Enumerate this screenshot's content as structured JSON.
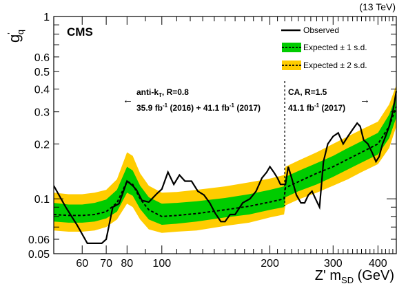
{
  "chart_data": {
    "type": "line",
    "energy_label": "(13 TeV)",
    "experiment_label": "CMS",
    "xlabel": {
      "main": "Z' m",
      "sub": "SD",
      "unit": " (GeV)"
    },
    "ylabel": {
      "main": "g",
      "sup": "'",
      "sub": "q"
    },
    "x_scale": "log",
    "y_scale": "log",
    "xlim": [
      50,
      450
    ],
    "ylim": [
      0.05,
      1.0
    ],
    "x_ticks": [
      {
        "value": 60,
        "label": "60"
      },
      {
        "value": 70,
        "label": "70"
      },
      {
        "value": 80,
        "label": "80"
      },
      {
        "value": 100,
        "label": "100"
      },
      {
        "value": 200,
        "label": "200"
      },
      {
        "value": 300,
        "label": "300"
      },
      {
        "value": 400,
        "label": "400"
      }
    ],
    "y_ticks": [
      {
        "value": 0.05,
        "label": "0.05"
      },
      {
        "value": 0.06,
        "label": "0.06"
      },
      {
        "value": 0.1,
        "label": "0.1"
      },
      {
        "value": 0.2,
        "label": "0.2"
      },
      {
        "value": 0.3,
        "label": "0.3"
      },
      {
        "value": 0.4,
        "label": "0.4"
      },
      {
        "value": 0.5,
        "label": "0.5"
      },
      {
        "value": 0.6,
        "label": "0.6"
      },
      {
        "value": 1.0,
        "label": "1"
      }
    ],
    "divider_x": 220,
    "region_left": {
      "arrow": "←",
      "algo_main": "anti-k",
      "algo_sub": "T",
      "algo_rest": ", R=0.8",
      "lumi_a": "35.9 fb",
      "lumi_a_sup": "-1",
      "lumi_a_rest": " (2016) + 41.1 fb",
      "lumi_b_sup": "-1",
      "lumi_b_rest": " (2017)"
    },
    "region_right": {
      "arrow": "→",
      "algo": "CA, R=1.5",
      "lumi": "41.1 fb",
      "lumi_sup": "-1",
      "lumi_rest": " (2017)"
    },
    "legend": {
      "placement": "top-right",
      "observed": "Observed",
      "exp1": "Expected ± 1 s.d.",
      "exp2": "Expected ± 2 s.d."
    },
    "colors": {
      "band1": "#00cc00",
      "band2": "#ffcc00",
      "observed": "#000000",
      "expected": "#000000"
    },
    "expected": {
      "x": [
        50,
        55,
        60,
        65,
        70,
        75,
        80,
        83,
        87,
        92,
        100,
        110,
        125,
        150,
        175,
        200,
        219,
        221,
        240,
        270,
        300,
        330,
        360,
        400,
        430,
        450
      ],
      "y": [
        0.082,
        0.081,
        0.081,
        0.082,
        0.085,
        0.095,
        0.125,
        0.12,
        0.1,
        0.087,
        0.08,
        0.081,
        0.083,
        0.087,
        0.091,
        0.096,
        0.1,
        0.115,
        0.124,
        0.138,
        0.15,
        0.165,
        0.18,
        0.2,
        0.25,
        0.32
      ]
    },
    "band_1sd": {
      "lower": [
        0.075,
        0.074,
        0.074,
        0.075,
        0.078,
        0.085,
        0.108,
        0.104,
        0.088,
        0.077,
        0.072,
        0.073,
        0.075,
        0.079,
        0.082,
        0.087,
        0.09,
        0.102,
        0.11,
        0.12,
        0.132,
        0.145,
        0.158,
        0.175,
        0.215,
        0.28
      ],
      "upper": [
        0.095,
        0.093,
        0.093,
        0.095,
        0.099,
        0.112,
        0.15,
        0.143,
        0.118,
        0.102,
        0.094,
        0.095,
        0.097,
        0.101,
        0.106,
        0.112,
        0.117,
        0.132,
        0.142,
        0.157,
        0.172,
        0.19,
        0.207,
        0.23,
        0.29,
        0.37
      ]
    },
    "band_2sd": {
      "lower": [
        0.067,
        0.066,
        0.066,
        0.067,
        0.07,
        0.077,
        0.094,
        0.09,
        0.077,
        0.068,
        0.065,
        0.066,
        0.067,
        0.071,
        0.074,
        0.079,
        0.082,
        0.092,
        0.099,
        0.108,
        0.118,
        0.128,
        0.14,
        0.155,
        0.19,
        0.25
      ],
      "upper": [
        0.108,
        0.106,
        0.106,
        0.108,
        0.112,
        0.128,
        0.18,
        0.172,
        0.138,
        0.118,
        0.108,
        0.109,
        0.112,
        0.117,
        0.123,
        0.129,
        0.135,
        0.15,
        0.162,
        0.18,
        0.2,
        0.22,
        0.24,
        0.265,
        0.33,
        0.42
      ]
    },
    "observed": {
      "x": [
        50,
        54,
        58,
        62,
        66,
        68,
        70,
        73,
        76,
        80,
        83,
        85,
        88,
        92,
        97,
        100,
        104,
        108,
        112,
        116,
        121,
        126,
        131,
        136,
        141,
        146,
        150,
        155,
        160,
        168,
        176,
        183,
        190,
        196,
        200,
        205,
        210,
        214,
        218,
        221,
        225,
        230,
        237,
        244,
        250,
        256,
        262,
        268,
        275,
        282,
        290,
        300,
        310,
        320,
        330,
        340,
        350,
        357,
        365,
        375,
        385,
        395,
        403,
        412,
        420,
        430,
        440,
        450
      ],
      "y": [
        0.118,
        0.09,
        0.072,
        0.057,
        0.057,
        0.057,
        0.06,
        0.09,
        0.094,
        0.125,
        0.118,
        0.112,
        0.098,
        0.096,
        0.107,
        0.113,
        0.14,
        0.12,
        0.135,
        0.125,
        0.125,
        0.11,
        0.105,
        0.095,
        0.083,
        0.075,
        0.075,
        0.082,
        0.082,
        0.095,
        0.1,
        0.11,
        0.13,
        0.14,
        0.15,
        0.14,
        0.13,
        0.12,
        0.12,
        0.12,
        0.15,
        0.13,
        0.105,
        0.095,
        0.095,
        0.105,
        0.11,
        0.1,
        0.09,
        0.16,
        0.2,
        0.22,
        0.23,
        0.2,
        0.22,
        0.24,
        0.26,
        0.25,
        0.21,
        0.2,
        0.18,
        0.16,
        0.17,
        0.2,
        0.22,
        0.25,
        0.3,
        0.39
      ]
    }
  }
}
